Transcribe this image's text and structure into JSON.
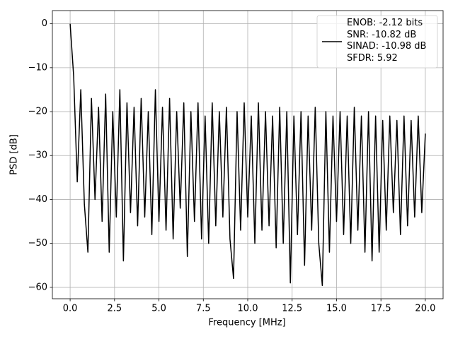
{
  "chart_data": {
    "type": "line",
    "xlabel": "Frequency [MHz]",
    "ylabel": "PSD [dB]",
    "x": [
      0.0,
      0.2,
      0.4,
      0.6,
      0.8,
      1.0,
      1.2,
      1.4,
      1.6,
      1.8,
      2.0,
      2.2,
      2.4,
      2.6,
      2.8,
      3.0,
      3.2,
      3.4,
      3.6,
      3.8,
      4.0,
      4.2,
      4.4,
      4.6,
      4.8,
      5.0,
      5.2,
      5.4,
      5.6,
      5.8,
      6.0,
      6.2,
      6.4,
      6.6,
      6.8,
      7.0,
      7.2,
      7.4,
      7.6,
      7.8,
      8.0,
      8.2,
      8.4,
      8.6,
      8.8,
      9.0,
      9.2,
      9.4,
      9.6,
      9.8,
      10.0,
      10.2,
      10.4,
      10.6,
      10.8,
      11.0,
      11.2,
      11.4,
      11.6,
      11.8,
      12.0,
      12.2,
      12.4,
      12.6,
      12.8,
      13.0,
      13.2,
      13.4,
      13.6,
      13.8,
      14.0,
      14.2,
      14.4,
      14.6,
      14.8,
      15.0,
      15.2,
      15.4,
      15.6,
      15.8,
      16.0,
      16.2,
      16.4,
      16.6,
      16.8,
      17.0,
      17.2,
      17.4,
      17.6,
      17.8,
      18.0,
      18.2,
      18.4,
      18.6,
      18.8,
      19.0,
      19.2,
      19.4,
      19.6,
      19.8,
      20.0
    ],
    "series": [
      {
        "name": "ENOB: -2.12 bits\nSNR: -10.82 dB\nSINAD: -10.98 dB\nSFDR: 5.92",
        "color": "#000000",
        "values": [
          0,
          -12,
          -36,
          -15,
          -41,
          -52,
          -17,
          -40,
          -19,
          -45,
          -16,
          -52,
          -20,
          -44,
          -15,
          -54,
          -18,
          -43,
          -19,
          -46,
          -17,
          -44,
          -20,
          -48,
          -15,
          -45,
          -19,
          -47,
          -17,
          -49,
          -20,
          -42,
          -18,
          -53,
          -20,
          -45,
          -18,
          -49,
          -21,
          -50,
          -18,
          -46,
          -20,
          -44,
          -19,
          -49,
          -58,
          -20,
          -47,
          -18,
          -44,
          -21,
          -50,
          -18,
          -47,
          -20,
          -46,
          -21,
          -51,
          -19,
          -50,
          -20,
          -59,
          -21,
          -48,
          -20,
          -55,
          -21,
          -47,
          -19,
          -50,
          -59.6,
          -20,
          -52,
          -21,
          -45,
          -20,
          -48,
          -21,
          -50,
          -19,
          -47,
          -21,
          -52,
          -20,
          -54,
          -21,
          -52,
          -22,
          -47,
          -21,
          -43,
          -22,
          -48,
          -21,
          -46,
          -22,
          -44,
          -21,
          -43,
          -25
        ]
      }
    ],
    "xlim": [
      -1.0,
      21.0
    ],
    "xticks": [
      {
        "value": 0,
        "label": "0.0"
      },
      2.5,
      {
        "value": 5,
        "label": "5.0"
      },
      7.5,
      {
        "value": 10,
        "label": "10.0"
      },
      12.5,
      {
        "value": 15,
        "label": "15.0"
      },
      17.5,
      {
        "value": 20,
        "label": "20.0"
      }
    ],
    "ylim": [
      -62.6,
      3.0
    ],
    "yticks": [
      {
        "value": -60,
        "label": "−60"
      },
      {
        "value": -50,
        "label": "−50"
      },
      {
        "value": -40,
        "label": "−40"
      },
      {
        "value": -30,
        "label": "−30"
      },
      {
        "value": -20,
        "label": "−20"
      },
      {
        "value": -10,
        "label": "−10"
      },
      0
    ],
    "grid": true,
    "legend": "upper right"
  }
}
